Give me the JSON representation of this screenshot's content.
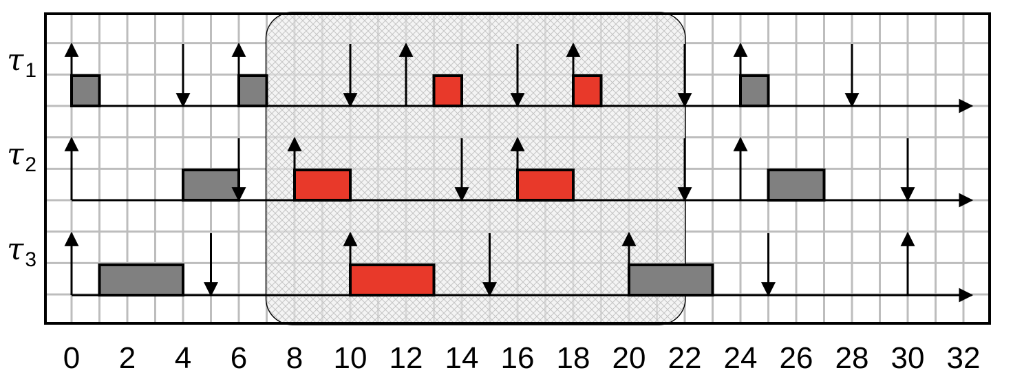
{
  "chart_data": {
    "type": "schedule",
    "x_ticks": [
      "0",
      "2",
      "4",
      "6",
      "8",
      "10",
      "12",
      "14",
      "16",
      "18",
      "20",
      "22",
      "24",
      "26",
      "28",
      "30",
      "32"
    ],
    "x_range": [
      -1,
      33
    ],
    "highlight_window": [
      7,
      22
    ],
    "colors": {
      "grid": "#bdbdbd",
      "normal_job": "#808080",
      "critical_job": "#e8392a",
      "highlight_fill": "#ececec",
      "axis": "#000000"
    },
    "tasks": [
      {
        "label_base": "τ",
        "label_index": "1",
        "releases": [
          0,
          6,
          12,
          18,
          24
        ],
        "deadlines": [
          4,
          10,
          16,
          22,
          28
        ],
        "jobs": [
          {
            "start": 0,
            "end": 1,
            "kind": "normal"
          },
          {
            "start": 6,
            "end": 7,
            "kind": "normal"
          },
          {
            "start": 13,
            "end": 14,
            "kind": "critical"
          },
          {
            "start": 18,
            "end": 19,
            "kind": "critical"
          },
          {
            "start": 24,
            "end": 25,
            "kind": "normal"
          }
        ]
      },
      {
        "label_base": "τ",
        "label_index": "2",
        "releases": [
          0,
          8,
          16,
          24
        ],
        "deadlines": [
          6,
          14,
          22,
          30
        ],
        "jobs": [
          {
            "start": 4,
            "end": 6,
            "kind": "normal"
          },
          {
            "start": 8,
            "end": 10,
            "kind": "critical"
          },
          {
            "start": 16,
            "end": 18,
            "kind": "critical"
          },
          {
            "start": 25,
            "end": 27,
            "kind": "normal"
          }
        ]
      },
      {
        "label_base": "τ",
        "label_index": "3",
        "releases": [
          0,
          10,
          20,
          30
        ],
        "deadlines": [
          5,
          15,
          25
        ],
        "jobs": [
          {
            "start": 1,
            "end": 4,
            "kind": "normal"
          },
          {
            "start": 10,
            "end": 13,
            "kind": "critical"
          },
          {
            "start": 20,
            "end": 23,
            "kind": "normal"
          }
        ]
      }
    ]
  }
}
